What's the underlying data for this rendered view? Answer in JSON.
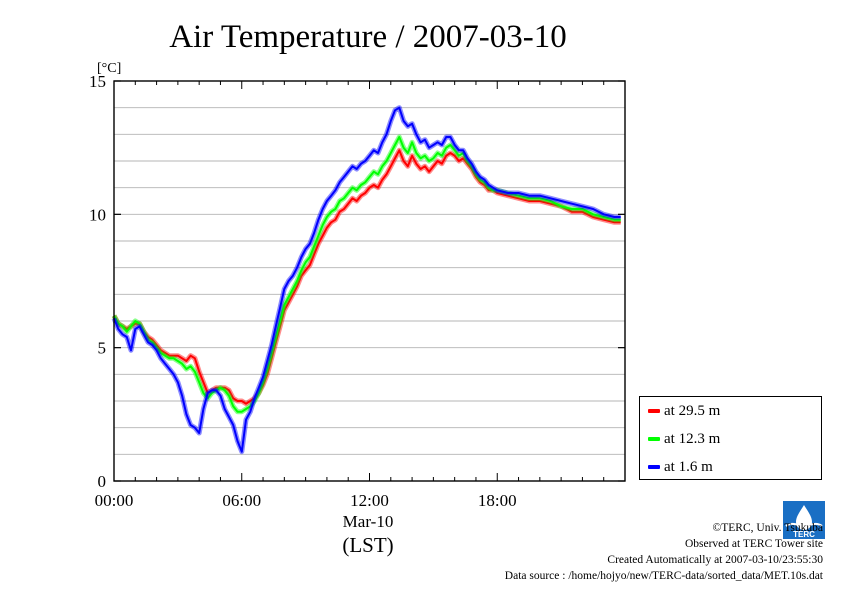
{
  "chart_data": {
    "type": "line",
    "title": "Air Temperature / 2007-03-10",
    "ylabel": "[°C]",
    "xlabel": "(LST)",
    "date_label": "Mar-10",
    "ylim": [
      0,
      15
    ],
    "xlim": [
      0,
      24
    ],
    "y_ticks": [
      0,
      5,
      10,
      15
    ],
    "x_ticks": [
      0,
      6,
      12,
      18
    ],
    "x_tick_labels": [
      "00:00",
      "06:00",
      "12:00",
      "18:00"
    ],
    "grid": true,
    "legend_position": "right",
    "series": [
      {
        "name": "at 29.5 m",
        "color": "#ff0000",
        "x": [
          0.0,
          0.2,
          0.4,
          0.6,
          0.8,
          1.0,
          1.2,
          1.4,
          1.6,
          1.8,
          2.0,
          2.2,
          2.4,
          2.6,
          2.8,
          3.0,
          3.2,
          3.4,
          3.6,
          3.8,
          4.0,
          4.2,
          4.4,
          4.6,
          4.8,
          5.0,
          5.2,
          5.4,
          5.6,
          5.8,
          6.0,
          6.2,
          6.4,
          6.6,
          6.8,
          7.0,
          7.2,
          7.4,
          7.6,
          7.8,
          8.0,
          8.2,
          8.4,
          8.6,
          8.8,
          9.0,
          9.2,
          9.4,
          9.6,
          9.8,
          10.0,
          10.2,
          10.4,
          10.6,
          10.8,
          11.0,
          11.2,
          11.4,
          11.6,
          11.8,
          12.0,
          12.2,
          12.4,
          12.6,
          12.8,
          13.0,
          13.2,
          13.4,
          13.6,
          13.8,
          14.0,
          14.2,
          14.4,
          14.6,
          14.8,
          15.0,
          15.2,
          15.4,
          15.6,
          15.8,
          16.0,
          16.2,
          16.4,
          16.6,
          16.8,
          17.0,
          17.2,
          17.4,
          17.6,
          17.8,
          18.0,
          18.5,
          19.0,
          19.5,
          20.0,
          20.5,
          21.0,
          21.5,
          22.0,
          22.5,
          23.0,
          23.5,
          23.8
        ],
        "values": [
          6.2,
          5.9,
          5.8,
          5.7,
          5.8,
          5.9,
          5.9,
          5.6,
          5.4,
          5.3,
          5.1,
          4.9,
          4.8,
          4.7,
          4.7,
          4.7,
          4.6,
          4.5,
          4.7,
          4.6,
          4.1,
          3.7,
          3.3,
          3.4,
          3.5,
          3.5,
          3.5,
          3.4,
          3.1,
          3.0,
          3.0,
          2.9,
          3.0,
          3.1,
          3.3,
          3.6,
          4.0,
          4.6,
          5.2,
          5.8,
          6.4,
          6.7,
          7.0,
          7.3,
          7.7,
          7.9,
          8.1,
          8.5,
          8.9,
          9.2,
          9.5,
          9.7,
          9.8,
          10.1,
          10.2,
          10.4,
          10.6,
          10.5,
          10.7,
          10.8,
          11.0,
          11.1,
          11.0,
          11.3,
          11.5,
          11.8,
          12.1,
          12.4,
          12.0,
          11.8,
          12.2,
          11.9,
          11.7,
          11.8,
          11.6,
          11.8,
          12.0,
          11.9,
          12.2,
          12.3,
          12.2,
          12.0,
          12.1,
          11.9,
          11.7,
          11.4,
          11.2,
          11.1,
          10.9,
          10.9,
          10.8,
          10.7,
          10.6,
          10.5,
          10.5,
          10.4,
          10.3,
          10.1,
          10.1,
          9.9,
          9.8,
          9.7,
          9.7
        ]
      },
      {
        "name": "at 12.3 m",
        "color": "#00ff00",
        "x": [
          0.0,
          0.2,
          0.4,
          0.6,
          0.8,
          1.0,
          1.2,
          1.4,
          1.6,
          1.8,
          2.0,
          2.2,
          2.4,
          2.6,
          2.8,
          3.0,
          3.2,
          3.4,
          3.6,
          3.8,
          4.0,
          4.2,
          4.4,
          4.6,
          4.8,
          5.0,
          5.2,
          5.4,
          5.6,
          5.8,
          6.0,
          6.2,
          6.4,
          6.6,
          6.8,
          7.0,
          7.2,
          7.4,
          7.6,
          7.8,
          8.0,
          8.2,
          8.4,
          8.6,
          8.8,
          9.0,
          9.2,
          9.4,
          9.6,
          9.8,
          10.0,
          10.2,
          10.4,
          10.6,
          10.8,
          11.0,
          11.2,
          11.4,
          11.6,
          11.8,
          12.0,
          12.2,
          12.4,
          12.6,
          12.8,
          13.0,
          13.2,
          13.4,
          13.6,
          13.8,
          14.0,
          14.2,
          14.4,
          14.6,
          14.8,
          15.0,
          15.2,
          15.4,
          15.6,
          15.8,
          16.0,
          16.2,
          16.4,
          16.6,
          16.8,
          17.0,
          17.2,
          17.4,
          17.6,
          17.8,
          18.0,
          18.5,
          19.0,
          19.5,
          20.0,
          20.5,
          21.0,
          21.5,
          22.0,
          22.5,
          23.0,
          23.5,
          23.8
        ],
        "values": [
          6.2,
          5.9,
          5.8,
          5.6,
          5.8,
          6.0,
          5.9,
          5.6,
          5.3,
          5.2,
          5.0,
          4.8,
          4.7,
          4.6,
          4.6,
          4.5,
          4.4,
          4.2,
          4.3,
          4.1,
          3.7,
          3.3,
          3.1,
          3.3,
          3.4,
          3.5,
          3.4,
          3.2,
          2.8,
          2.6,
          2.6,
          2.7,
          2.8,
          3.0,
          3.3,
          3.7,
          4.2,
          4.8,
          5.4,
          6.0,
          6.6,
          6.9,
          7.2,
          7.5,
          7.9,
          8.2,
          8.4,
          8.8,
          9.2,
          9.6,
          9.9,
          10.1,
          10.2,
          10.5,
          10.6,
          10.8,
          11.0,
          10.9,
          11.1,
          11.2,
          11.4,
          11.6,
          11.5,
          11.8,
          12.0,
          12.3,
          12.6,
          12.9,
          12.5,
          12.3,
          12.7,
          12.3,
          12.1,
          12.2,
          12.0,
          12.1,
          12.3,
          12.2,
          12.5,
          12.6,
          12.4,
          12.2,
          12.3,
          12.0,
          11.8,
          11.5,
          11.3,
          11.2,
          11.0,
          10.9,
          10.9,
          10.8,
          10.7,
          10.6,
          10.6,
          10.5,
          10.3,
          10.2,
          10.2,
          10.0,
          9.9,
          9.8,
          9.8
        ]
      },
      {
        "name": "at 1.6 m",
        "color": "#0000ff",
        "x": [
          0.0,
          0.2,
          0.4,
          0.6,
          0.8,
          1.0,
          1.2,
          1.4,
          1.6,
          1.8,
          2.0,
          2.2,
          2.4,
          2.6,
          2.8,
          3.0,
          3.2,
          3.4,
          3.6,
          3.8,
          4.0,
          4.2,
          4.4,
          4.6,
          4.8,
          5.0,
          5.2,
          5.4,
          5.6,
          5.8,
          6.0,
          6.2,
          6.4,
          6.6,
          6.8,
          7.0,
          7.2,
          7.4,
          7.6,
          7.8,
          8.0,
          8.2,
          8.4,
          8.6,
          8.8,
          9.0,
          9.2,
          9.4,
          9.6,
          9.8,
          10.0,
          10.2,
          10.4,
          10.6,
          10.8,
          11.0,
          11.2,
          11.4,
          11.6,
          11.8,
          12.0,
          12.2,
          12.4,
          12.6,
          12.8,
          13.0,
          13.2,
          13.4,
          13.6,
          13.8,
          14.0,
          14.2,
          14.4,
          14.6,
          14.8,
          15.0,
          15.2,
          15.4,
          15.6,
          15.8,
          16.0,
          16.2,
          16.4,
          16.6,
          16.8,
          17.0,
          17.2,
          17.4,
          17.6,
          17.8,
          18.0,
          18.5,
          19.0,
          19.5,
          20.0,
          20.5,
          21.0,
          21.5,
          22.0,
          22.5,
          23.0,
          23.5,
          23.8
        ],
        "values": [
          6.1,
          5.7,
          5.5,
          5.4,
          4.9,
          5.7,
          5.8,
          5.5,
          5.2,
          5.1,
          4.9,
          4.6,
          4.4,
          4.2,
          4.0,
          3.7,
          3.2,
          2.5,
          2.1,
          2.0,
          1.8,
          2.7,
          3.3,
          3.4,
          3.4,
          3.2,
          2.7,
          2.4,
          2.1,
          1.5,
          1.1,
          2.3,
          2.6,
          3.1,
          3.5,
          3.9,
          4.5,
          5.1,
          5.8,
          6.5,
          7.2,
          7.5,
          7.7,
          8.0,
          8.4,
          8.7,
          8.9,
          9.3,
          9.8,
          10.2,
          10.5,
          10.7,
          10.9,
          11.2,
          11.4,
          11.6,
          11.8,
          11.7,
          11.9,
          12.0,
          12.2,
          12.4,
          12.3,
          12.7,
          13.0,
          13.5,
          13.9,
          14.0,
          13.5,
          13.3,
          13.4,
          13.0,
          12.7,
          12.8,
          12.5,
          12.6,
          12.7,
          12.6,
          12.9,
          12.9,
          12.6,
          12.4,
          12.4,
          12.1,
          11.9,
          11.6,
          11.4,
          11.3,
          11.1,
          11.0,
          10.9,
          10.8,
          10.8,
          10.7,
          10.7,
          10.6,
          10.5,
          10.4,
          10.3,
          10.2,
          10.0,
          9.9,
          9.9
        ]
      }
    ]
  },
  "footer": {
    "copyright": "©TERC, Univ. Tsukuba",
    "observed": "Observed at TERC Tower site",
    "created": "Created Automatically at 2007-03-10/23:55:30",
    "source": "Data source : /home/hojyo/new/TERC-data/sorted_data/MET.10s.dat"
  },
  "logo": {
    "text": "TERC",
    "color": "#1a6fc4"
  }
}
